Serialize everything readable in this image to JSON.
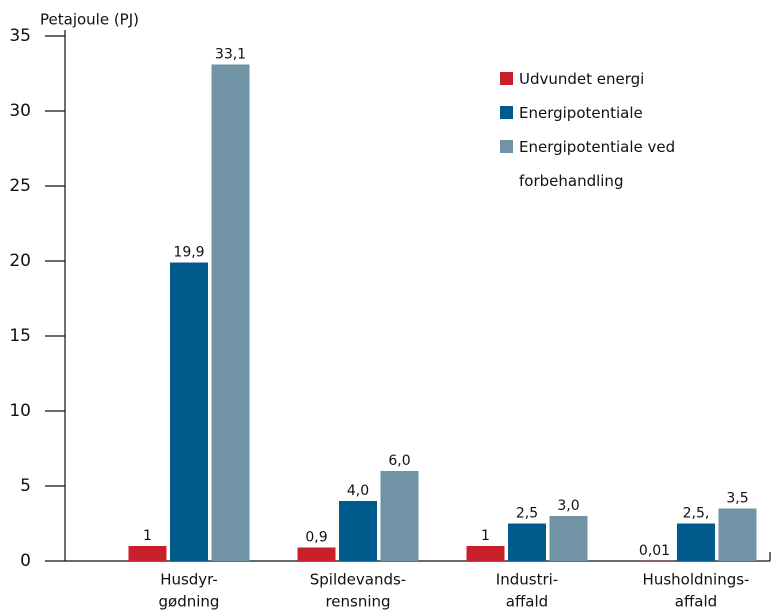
{
  "chart_data": {
    "type": "bar",
    "y_label": "Petajoule (PJ)",
    "categories": [
      [
        "Husdyr-",
        "gødning"
      ],
      [
        "Spildevands-",
        "rensning"
      ],
      [
        "Industri-",
        "affald"
      ],
      [
        "Husholdnings-",
        "affald"
      ]
    ],
    "series": [
      {
        "name": "Udvundet energi",
        "color": "#c8202a",
        "values": [
          1,
          0.9,
          1,
          0.01
        ],
        "value_labels": [
          "1",
          "0,9",
          "1",
          "0,01"
        ]
      },
      {
        "name": "Energipotentiale",
        "color": "#005a8c",
        "values": [
          19.9,
          4.0,
          2.5,
          2.5
        ],
        "value_labels": [
          "19,9",
          "4,0",
          "2,5",
          "2,5,"
        ]
      },
      {
        "name": "Energipotentiale ved forbehandling",
        "color": "#7093a5",
        "values": [
          33.1,
          6.0,
          3.0,
          3.5
        ],
        "value_labels": [
          "33,1",
          "6,0",
          "3,0",
          "3,5"
        ]
      }
    ],
    "ylim": [
      0,
      35
    ],
    "yticks": [
      0,
      5,
      10,
      15,
      20,
      25,
      30,
      35
    ],
    "grid": false,
    "legend": "top-right"
  }
}
